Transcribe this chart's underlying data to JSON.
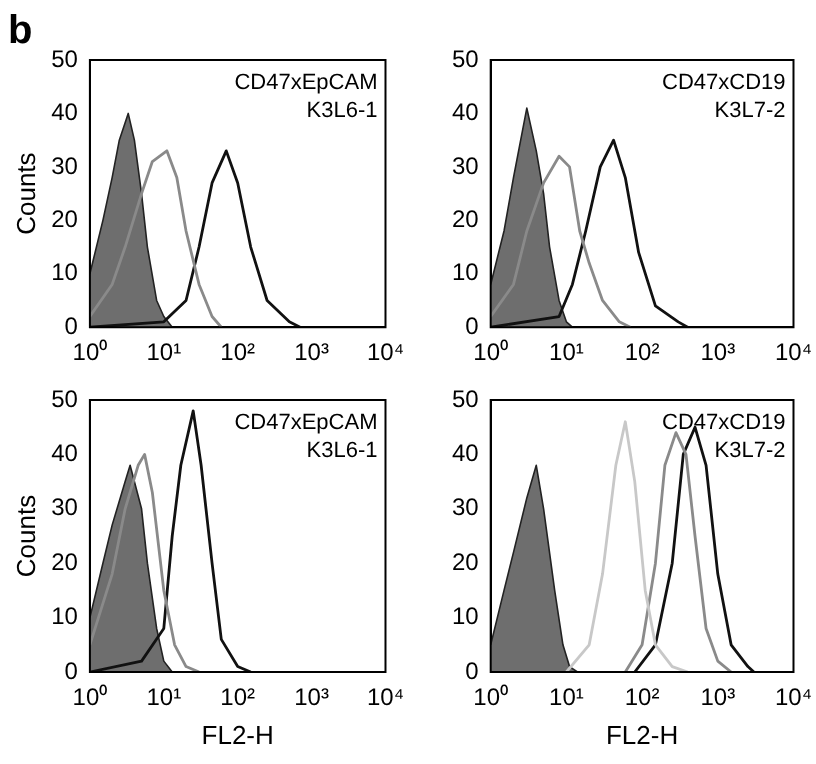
{
  "chart_data": [
    {
      "type": "line",
      "title": "b",
      "ylabel": "Counts",
      "annotations": [
        "CD47xEpCAM",
        "K3L6-1"
      ],
      "log": "x",
      "xlim": [
        1,
        10000
      ],
      "xticks": [
        {
          "value": 1,
          "label": "10⁰"
        },
        {
          "value": 10,
          "label": "10¹"
        },
        {
          "value": 100,
          "label": "10²"
        },
        {
          "value": 1000,
          "label": "10³"
        },
        {
          "value": 10000,
          "label": "10⁴"
        }
      ],
      "ylim": [
        0,
        50
      ],
      "yticks": [
        0,
        10,
        20,
        30,
        40,
        50
      ],
      "series": [
        {
          "type": "area",
          "color": "#6e6e6e",
          "x": [
            1,
            1.5,
            2,
            2.5,
            3.3,
            4,
            5,
            6,
            8,
            10,
            13
          ],
          "values": [
            10,
            20,
            28,
            35,
            40,
            35,
            25,
            15,
            5,
            2,
            0
          ]
        },
        {
          "color": "#8a8a8a",
          "x": [
            1,
            2,
            3,
            5,
            7,
            11,
            15,
            20,
            30,
            45,
            60
          ],
          "values": [
            2,
            8,
            15,
            25,
            31,
            33,
            28,
            18,
            8,
            2,
            0
          ]
        },
        {
          "color": "#111111",
          "x": [
            1,
            10,
            20,
            30,
            45,
            70,
            100,
            150,
            250,
            500,
            700
          ],
          "values": [
            0,
            1,
            5,
            15,
            27,
            33,
            27,
            15,
            5,
            1,
            0
          ]
        }
      ]
    },
    {
      "type": "line",
      "annotations": [
        "CD47xCD19",
        "K3L7-2"
      ],
      "log": "x",
      "xlim": [
        1,
        10000
      ],
      "xticks": [
        {
          "value": 1,
          "label": "10⁰"
        },
        {
          "value": 10,
          "label": "10¹"
        },
        {
          "value": 100,
          "label": "10²"
        },
        {
          "value": 1000,
          "label": "10³"
        },
        {
          "value": 10000,
          "label": "10⁴"
        }
      ],
      "ylim": [
        0,
        50
      ],
      "yticks": [
        0,
        10,
        20,
        30,
        40,
        50
      ],
      "series": [
        {
          "type": "area",
          "color": "#6e6e6e",
          "x": [
            1,
            1.5,
            2,
            3,
            4,
            5,
            6,
            8,
            10,
            12
          ],
          "values": [
            8,
            18,
            28,
            41,
            33,
            25,
            15,
            5,
            1,
            0
          ]
        },
        {
          "color": "#8a8a8a",
          "x": [
            1,
            2,
            3,
            5,
            8,
            11,
            15,
            20,
            30,
            50,
            70
          ],
          "values": [
            2,
            8,
            18,
            27,
            32,
            30,
            18,
            12,
            5,
            1,
            0
          ]
        },
        {
          "color": "#111111",
          "x": [
            1,
            8,
            12,
            18,
            28,
            42,
            60,
            90,
            150,
            300,
            400
          ],
          "values": [
            0,
            2,
            8,
            18,
            30,
            35,
            28,
            14,
            4,
            1,
            0
          ]
        }
      ]
    },
    {
      "type": "line",
      "xlabel": "FL2-H",
      "ylabel": "Counts",
      "annotations": [
        "CD47xEpCAM",
        "K3L6-1"
      ],
      "log": "x",
      "xlim": [
        1,
        10000
      ],
      "xticks": [
        {
          "value": 1,
          "label": "10⁰"
        },
        {
          "value": 10,
          "label": "10¹"
        },
        {
          "value": 100,
          "label": "10²"
        },
        {
          "value": 1000,
          "label": "10³"
        },
        {
          "value": 10000,
          "label": "10⁴"
        }
      ],
      "ylim": [
        0,
        50
      ],
      "yticks": [
        0,
        10,
        20,
        30,
        40,
        50
      ],
      "series": [
        {
          "type": "area",
          "color": "#6e6e6e",
          "x": [
            1,
            1.5,
            2,
            3,
            3.5,
            5,
            6,
            8,
            10,
            13
          ],
          "values": [
            10,
            20,
            27,
            35,
            38,
            30,
            20,
            8,
            2,
            0
          ]
        },
        {
          "color": "#8a8a8a",
          "x": [
            1,
            2,
            3,
            4.5,
            5.5,
            7,
            10,
            14,
            20,
            30
          ],
          "values": [
            5,
            18,
            30,
            38,
            40,
            33,
            15,
            5,
            1,
            0
          ]
        },
        {
          "color": "#111111",
          "x": [
            1,
            5,
            10,
            13,
            17,
            25,
            32,
            45,
            60,
            100,
            150
          ],
          "values": [
            0,
            2,
            8,
            25,
            38,
            48,
            38,
            20,
            6,
            1,
            0
          ]
        }
      ]
    },
    {
      "type": "line",
      "xlabel": "FL2-H",
      "annotations": [
        "CD47xCD19",
        "K3L7-2"
      ],
      "log": "x",
      "xlim": [
        1,
        10000
      ],
      "xticks": [
        {
          "value": 1,
          "label": "10⁰"
        },
        {
          "value": 10,
          "label": "10¹"
        },
        {
          "value": 100,
          "label": "10²"
        },
        {
          "value": 1000,
          "label": "10³"
        },
        {
          "value": 10000,
          "label": "10⁴"
        }
      ],
      "ylim": [
        0,
        50
      ],
      "yticks": [
        0,
        10,
        20,
        30,
        40,
        50
      ],
      "series": [
        {
          "type": "area",
          "color": "#6e6e6e",
          "x": [
            1,
            1.5,
            2,
            3,
            4,
            5,
            7,
            9,
            11,
            14
          ],
          "values": [
            5,
            15,
            22,
            32,
            38,
            30,
            15,
            5,
            1,
            0
          ]
        },
        {
          "color": "#c8c8c8",
          "x": [
            10,
            20,
            30,
            45,
            60,
            80,
            110,
            150,
            250,
            400
          ],
          "values": [
            0,
            5,
            18,
            38,
            46,
            35,
            15,
            5,
            1,
            0
          ]
        },
        {
          "color": "#8a8a8a",
          "x": [
            60,
            100,
            150,
            200,
            280,
            380,
            500,
            700,
            1000,
            1500
          ],
          "values": [
            0,
            5,
            20,
            38,
            44,
            40,
            25,
            8,
            2,
            0
          ]
        },
        {
          "color": "#111111",
          "x": [
            80,
            150,
            250,
            350,
            500,
            700,
            1000,
            1500,
            2500,
            3000
          ],
          "values": [
            0,
            5,
            20,
            40,
            45,
            38,
            18,
            5,
            1,
            0
          ]
        }
      ]
    }
  ]
}
